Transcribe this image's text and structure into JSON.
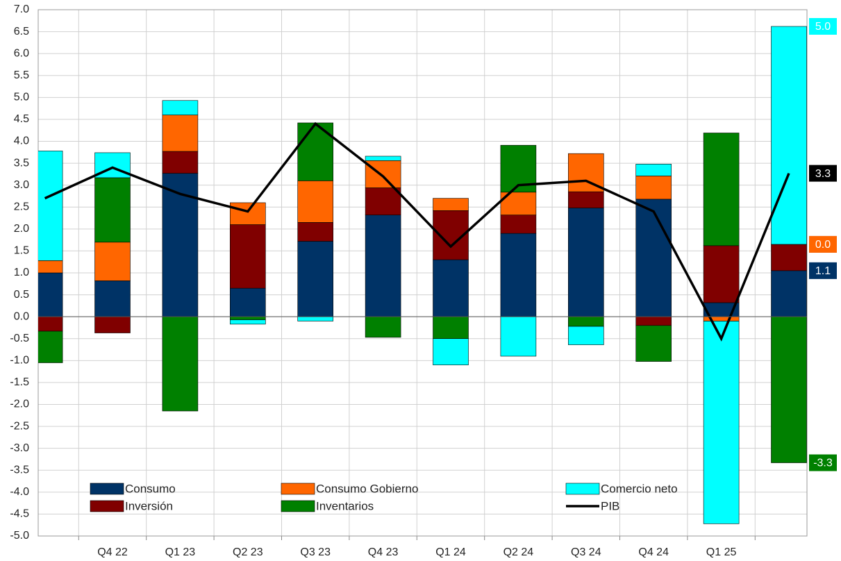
{
  "chart_data": {
    "type": "bar",
    "categories": [
      null,
      "Q4 22",
      "Q1 23",
      "Q2 23",
      "Q3 23",
      "Q4 23",
      "Q1 24",
      "Q2 24",
      "Q3 24",
      "Q4 24",
      "Q1 25",
      null
    ],
    "ylim": [
      -5,
      7
    ],
    "yticks": [
      {
        "value": -5,
        "label": "-5.0"
      },
      -4.5,
      {
        "value": -4,
        "label": "-4.0"
      },
      -3.5,
      {
        "value": -3,
        "label": "-3.0"
      },
      -2.5,
      {
        "value": -2,
        "label": "-2.0"
      },
      -1.5,
      {
        "value": -1,
        "label": "-1.0"
      },
      -0.5,
      {
        "value": 0,
        "label": "0.0"
      },
      0.5,
      {
        "value": 1,
        "label": "1.0"
      },
      1.5,
      {
        "value": 2,
        "label": "2.0"
      },
      2.5,
      {
        "value": 3,
        "label": "3.0"
      },
      3.5,
      {
        "value": 4,
        "label": "4.0"
      },
      4.5,
      {
        "value": 5,
        "label": "5.0"
      },
      5.5,
      {
        "value": 6,
        "label": "6.0"
      },
      6.5,
      {
        "value": 7,
        "label": "7.0"
      }
    ],
    "grid": true,
    "series": [
      {
        "name": "Consumo",
        "color": "#003366",
        "values": [
          1.0,
          0.82,
          3.27,
          0.65,
          1.72,
          2.32,
          1.3,
          1.9,
          2.48,
          2.68,
          0.32,
          1.05
        ],
        "value_labels": [
          null,
          null,
          null,
          null,
          null,
          null,
          null,
          null,
          null,
          null,
          null,
          "1.1"
        ]
      },
      {
        "name": "Inversión",
        "color": "#800000",
        "values": [
          -0.33,
          -0.37,
          0.5,
          1.45,
          0.43,
          0.62,
          1.12,
          0.42,
          0.37,
          -0.2,
          1.3,
          0.6
        ],
        "value_labels": [
          null,
          null,
          null,
          null,
          null,
          null,
          null,
          null,
          null,
          null,
          null,
          "0.6"
        ]
      },
      {
        "name": "Consumo Gobierno",
        "color": "#ff6600",
        "values": [
          0.28,
          0.88,
          0.83,
          0.5,
          0.95,
          0.62,
          0.28,
          0.52,
          0.87,
          0.53,
          -0.1,
          0.0
        ],
        "value_labels": [
          null,
          null,
          null,
          null,
          null,
          null,
          null,
          null,
          null,
          null,
          null,
          "0.0"
        ]
      },
      {
        "name": "Inventarios",
        "color": "#008000",
        "values": [
          -0.72,
          1.47,
          -2.15,
          -0.07,
          1.32,
          -0.47,
          -0.5,
          1.07,
          -0.22,
          -0.82,
          2.57,
          -3.33
        ],
        "value_labels": [
          null,
          null,
          null,
          null,
          null,
          null,
          null,
          null,
          null,
          null,
          null,
          "-3.3"
        ]
      },
      {
        "name": "Comercio neto",
        "color": "#00ffff",
        "values": [
          2.5,
          0.57,
          0.33,
          -0.1,
          -0.1,
          0.1,
          -0.6,
          -0.9,
          -0.42,
          0.27,
          -4.62,
          4.97
        ],
        "value_labels": [
          null,
          null,
          null,
          null,
          null,
          null,
          null,
          null,
          null,
          null,
          null,
          "5.0"
        ]
      },
      {
        "name": "PIB",
        "color": "#000000",
        "type": "line",
        "values": [
          2.7,
          3.4,
          2.8,
          2.4,
          4.4,
          3.2,
          1.6,
          3.0,
          3.1,
          2.4,
          -0.5,
          3.27
        ],
        "value_labels": [
          null,
          null,
          null,
          null,
          null,
          null,
          null,
          null,
          null,
          null,
          null,
          "3.3"
        ]
      }
    ]
  }
}
